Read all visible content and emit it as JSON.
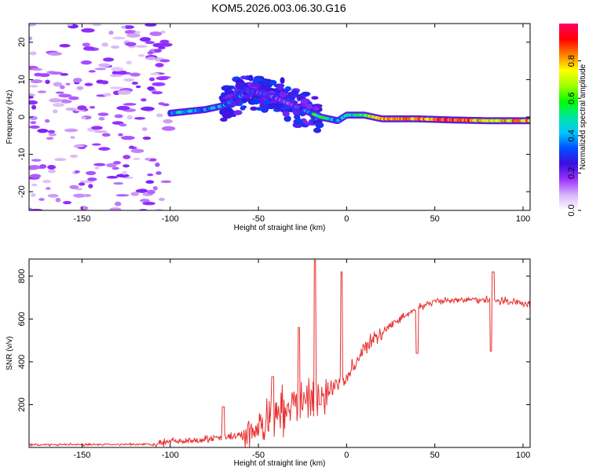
{
  "title": "KOM5.2026.003.06.30.G16",
  "chart_data": [
    {
      "type": "heatmap",
      "name": "spectrogram",
      "xlabel": "Height of straight line (km)",
      "ylabel": "Frequency (Hz)",
      "xlim": [
        -180,
        104
      ],
      "ylim": [
        -25,
        25
      ],
      "x_ticks": [
        -150,
        -100,
        -50,
        0,
        50,
        100
      ],
      "y_ticks": [
        -20,
        -10,
        0,
        10,
        20
      ],
      "colorbar": {
        "label": "Normalized spectral amplitude",
        "range": [
          0,
          1
        ],
        "ticks": [
          "0.0",
          "0.2",
          "0.4",
          "0.6",
          "0.8"
        ],
        "colors": [
          "#ffffff",
          "#d8b4f8",
          "#9b30ff",
          "#3a0fe0",
          "#0050ff",
          "#00c8ff",
          "#00e6a0",
          "#00ff00",
          "#a0ff00",
          "#ffff00",
          "#ff8000",
          "#ff0000",
          "#ff0066"
        ]
      },
      "ridge": [
        {
          "x": -100,
          "f": 1,
          "a": 0.35
        },
        {
          "x": -90,
          "f": 1.5,
          "a": 0.4
        },
        {
          "x": -80,
          "f": 2,
          "a": 0.38
        },
        {
          "x": -70,
          "f": 3,
          "a": 0.35
        },
        {
          "x": -62,
          "f": 5,
          "a": 0.3
        },
        {
          "x": -55,
          "f": 7,
          "a": 0.25
        },
        {
          "x": -45,
          "f": 6,
          "a": 0.25
        },
        {
          "x": -35,
          "f": 4,
          "a": 0.25
        },
        {
          "x": -25,
          "f": 2,
          "a": 0.25
        },
        {
          "x": -15,
          "f": 0,
          "a": 0.6
        },
        {
          "x": -5,
          "f": -1,
          "a": 0.3
        },
        {
          "x": 0,
          "f": 0.5,
          "a": 0.45
        },
        {
          "x": 10,
          "f": 0.5,
          "a": 0.55
        },
        {
          "x": 20,
          "f": -0.5,
          "a": 0.85
        },
        {
          "x": 40,
          "f": -0.5,
          "a": 0.8
        },
        {
          "x": 60,
          "f": -0.8,
          "a": 0.9
        },
        {
          "x": 80,
          "f": -1,
          "a": 0.75
        },
        {
          "x": 104,
          "f": -1,
          "a": 0.8
        }
      ]
    },
    {
      "type": "line",
      "name": "snr",
      "xlabel": "Height of straight line (km)",
      "ylabel": "SNR (v/v)",
      "xlim": [
        -180,
        104
      ],
      "ylim": [
        0,
        880
      ],
      "x_ticks": [
        -150,
        -100,
        -50,
        0,
        50,
        100
      ],
      "y_ticks": [
        200,
        400,
        600,
        800
      ],
      "series_color": "#e83030",
      "trend": {
        "x": [
          -180,
          -110,
          -100,
          -80,
          -70,
          -60,
          -50,
          -40,
          -30,
          -20,
          -10,
          0,
          10,
          20,
          30,
          40,
          50,
          60,
          70,
          80,
          90,
          104
        ],
        "y": [
          12,
          15,
          25,
          40,
          45,
          55,
          90,
          150,
          200,
          230,
          260,
          330,
          460,
          540,
          600,
          650,
          680,
          685,
          690,
          690,
          685,
          670
        ]
      },
      "spikes": [
        {
          "x": -70,
          "y": 190
        },
        {
          "x": -42,
          "y": 330
        },
        {
          "x": -27,
          "y": 560
        },
        {
          "x": -18,
          "y": 875
        },
        {
          "x": -15,
          "y": 200
        },
        {
          "x": -3,
          "y": 820
        },
        {
          "x": 40,
          "y": 440
        },
        {
          "x": 82,
          "y": 450
        },
        {
          "x": 83,
          "y": 820
        }
      ]
    }
  ]
}
